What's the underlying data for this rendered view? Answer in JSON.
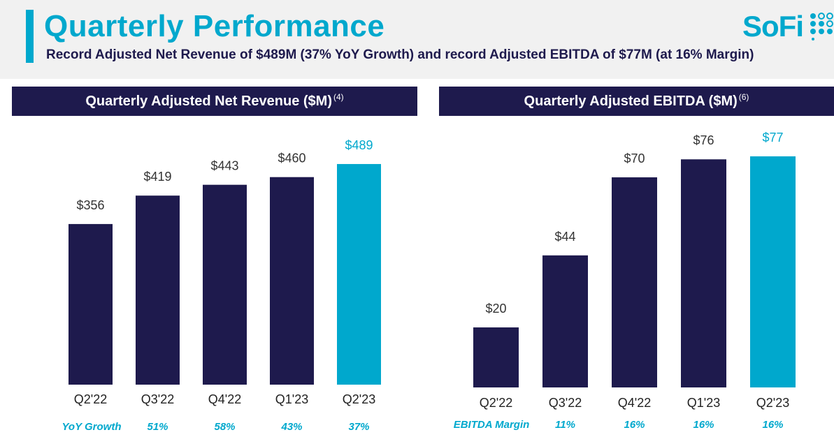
{
  "header": {
    "title": "Quarterly Performance",
    "subtitle": "Record Adjusted Net Revenue of $489M (37% YoY Growth) and record Adjusted EBITDA of $77M (at 16% Margin)",
    "logo_text": "SoFi"
  },
  "colors": {
    "accent": "#00a8cd",
    "navy": "#1e1a4d",
    "header_bg": "#f1f1f1"
  },
  "chart_data": [
    {
      "type": "bar",
      "title": "Quarterly Adjusted Net Revenue ($M)",
      "title_footnote": "(4)",
      "categories": [
        "Q2'22",
        "Q3'22",
        "Q4'22",
        "Q1'23",
        "Q2'23"
      ],
      "values": [
        356,
        419,
        443,
        460,
        489
      ],
      "labels": [
        "$356",
        "$419",
        "$443",
        "$460",
        "$489"
      ],
      "highlight_index": 4,
      "ylim": [
        0,
        540
      ],
      "footer_label": "YoY Growth",
      "footer_values": [
        "51%",
        "58%",
        "43%",
        "37%"
      ],
      "footer_start_index": 1
    },
    {
      "type": "bar",
      "title": "Quarterly Adjusted EBITDA ($M)",
      "title_footnote": "(6)",
      "categories": [
        "Q2'22",
        "Q3'22",
        "Q4'22",
        "Q1'23",
        "Q2'23"
      ],
      "values": [
        20,
        44,
        70,
        76,
        77
      ],
      "labels": [
        "$20",
        "$44",
        "$70",
        "$76",
        "$77"
      ],
      "highlight_index": 4,
      "ylim": [
        0,
        83.5
      ],
      "footer_label": "EBITDA Margin",
      "footer_values": [
        "11%",
        "16%",
        "16%",
        "16%"
      ],
      "footer_start_index": 1
    }
  ]
}
